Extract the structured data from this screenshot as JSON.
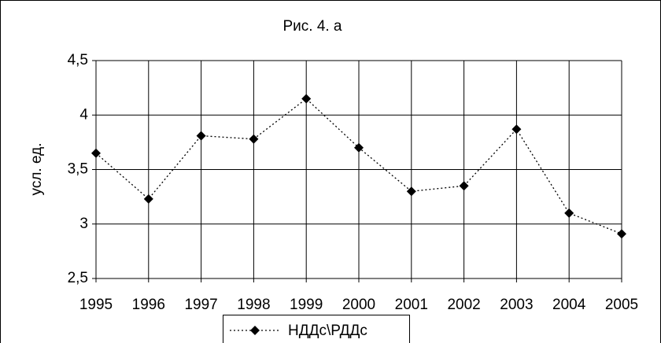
{
  "chart_data": {
    "type": "line",
    "title": "Рис. 4. а",
    "ylabel": "усл. ед.",
    "x": [
      1995,
      1996,
      1997,
      1998,
      1999,
      2000,
      2001,
      2002,
      2003,
      2004,
      2005
    ],
    "series": [
      {
        "name": "НДДс\\РДДс",
        "color": "#000000",
        "values": [
          3.65,
          3.23,
          3.81,
          3.78,
          4.15,
          3.7,
          3.3,
          3.35,
          3.87,
          3.1,
          2.91
        ]
      }
    ],
    "xlim": [
      1995,
      2005
    ],
    "xticks": [
      1995,
      1996,
      1997,
      1998,
      1999,
      2000,
      2001,
      2002,
      2003,
      2004,
      2005
    ],
    "ylim": [
      2.5,
      4.5
    ],
    "yticks": [
      {
        "value": 2.5,
        "label": "2,5"
      },
      3,
      {
        "value": 3.5,
        "label": "3,5"
      },
      4,
      {
        "value": 4.5,
        "label": "4,5"
      }
    ],
    "grid": true,
    "legend": "bottom"
  }
}
